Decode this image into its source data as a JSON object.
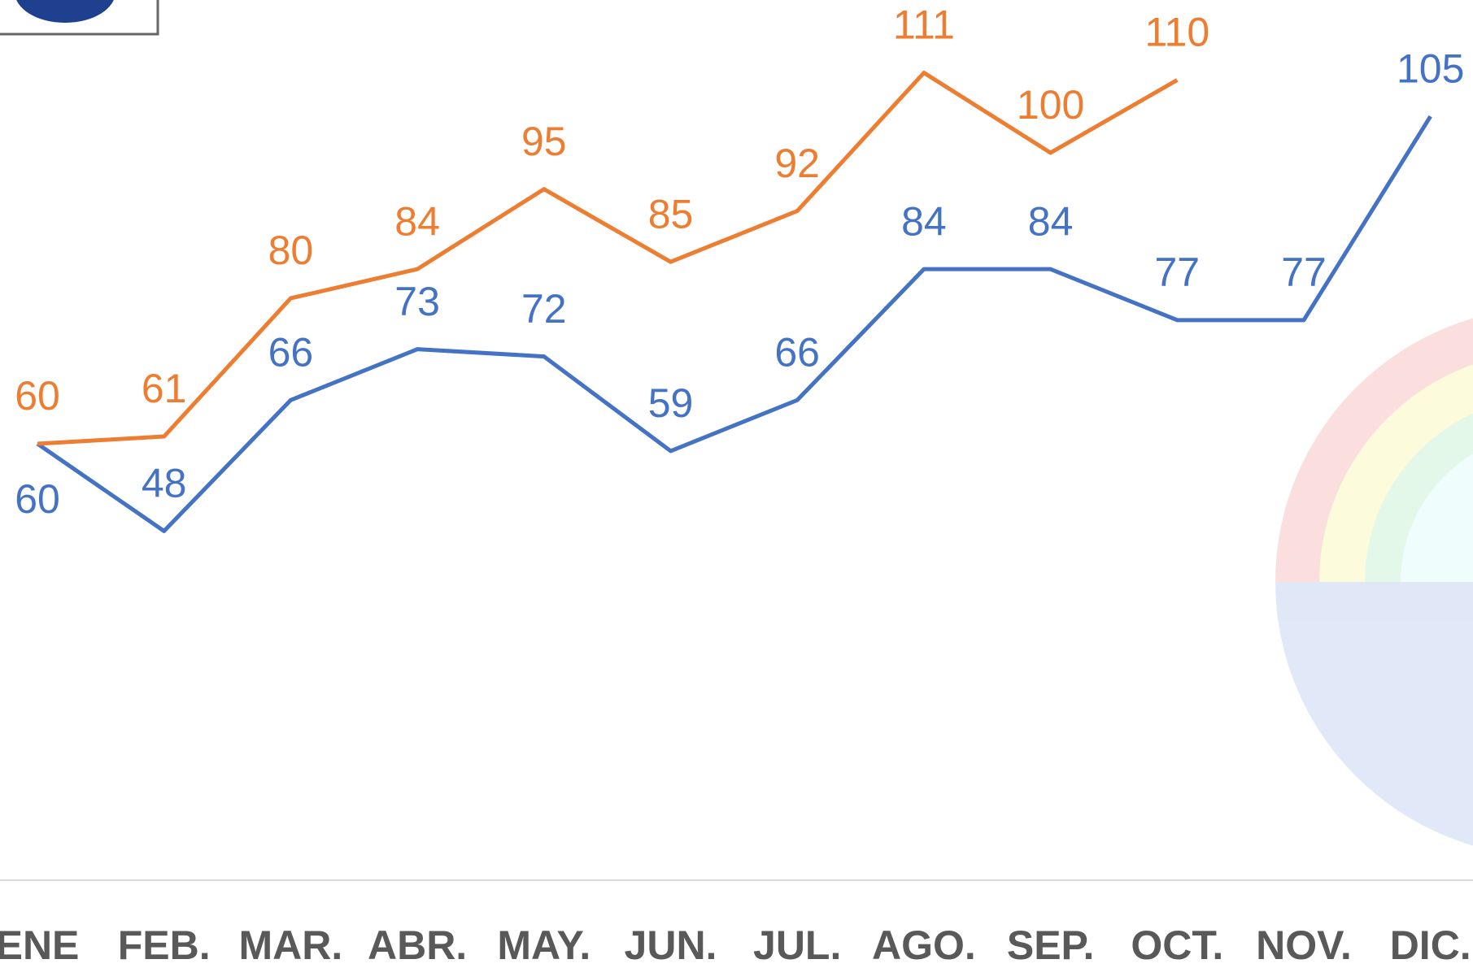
{
  "chart_data": {
    "type": "line",
    "categories": [
      "ENE",
      "FEB.",
      "MAR.",
      "ABR.",
      "MAY.",
      "JUN.",
      "JUL.",
      "AGO.",
      "SEP.",
      "OCT.",
      "NOV.",
      "DIC."
    ],
    "series": [
      {
        "color": "#4472c4",
        "values": [
          60,
          48,
          66,
          73,
          72,
          59,
          66,
          84,
          84,
          77,
          77,
          105
        ]
      },
      {
        "color": "#ed7d31",
        "values": [
          60,
          61,
          80,
          84,
          95,
          85,
          92,
          111,
          100,
          110,
          null,
          null
        ]
      }
    ],
    "ylim": [
      0,
      121
    ]
  }
}
